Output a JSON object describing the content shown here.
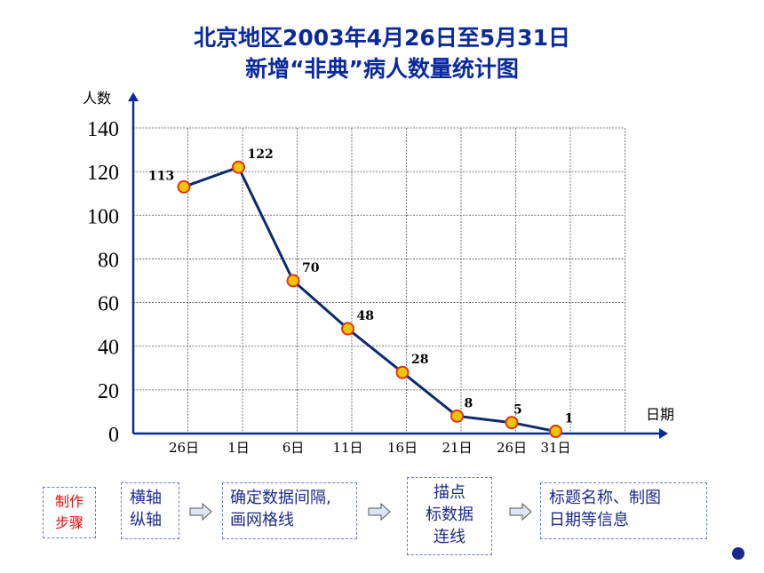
{
  "title_line1": "北京地区2003年4月26日至5月31日",
  "title_line2": "新增“非典”病人数量统计图",
  "chart_data": {
    "type": "line",
    "ylabel": "人数",
    "xlabel": "日期",
    "ylim": [
      0,
      140
    ],
    "yticks": [
      0,
      20,
      40,
      60,
      80,
      100,
      120,
      140
    ],
    "grid": true,
    "categories": [
      "26日",
      "1日",
      "6日",
      "11日",
      "16日",
      "21日",
      "26日",
      "31日"
    ],
    "values": [
      113,
      122,
      70,
      48,
      28,
      8,
      5,
      1
    ],
    "line_color": "#0b2a6e",
    "marker_color": "#f3c400",
    "marker_edge": "#e0341a"
  },
  "steps": {
    "label": [
      "制作",
      "步骤"
    ],
    "boxes": [
      [
        "横轴",
        "纵轴"
      ],
      [
        "确定数据间隔,",
        "画网格线"
      ],
      [
        "描点",
        "标数据",
        "连线"
      ],
      [
        "标题名称、制图",
        "日期等信息"
      ]
    ]
  }
}
